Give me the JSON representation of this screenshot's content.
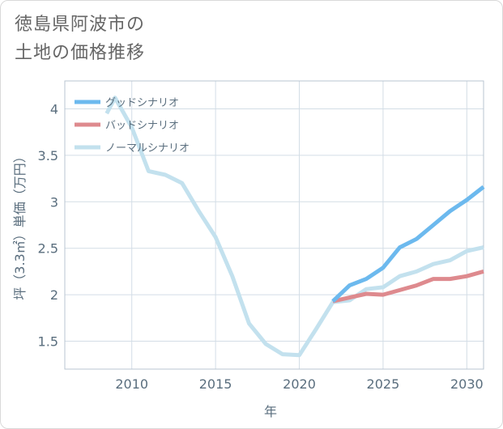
{
  "title_lines": [
    "徳島県阿波市の",
    "土地の価格推移"
  ],
  "chart_data": {
    "type": "line",
    "xlabel": "年",
    "ylabel": "坪（3.3㎡）単価（万円）",
    "xlim": [
      2006,
      2031
    ],
    "ylim": [
      1.2,
      4.3
    ],
    "xticks": [
      2010,
      2015,
      2020,
      2025,
      2030
    ],
    "yticks": [
      1.5,
      2,
      2.5,
      3,
      3.5,
      4
    ],
    "xtick_labels": [
      "2010",
      "2015",
      "2020",
      "2025",
      "2030"
    ],
    "ytick_labels": [
      "1.5",
      "2",
      "2.5",
      "3",
      "3.5",
      "4"
    ],
    "grid": true,
    "legend_position": "top-left",
    "series": [
      {
        "name": "グッドシナリオ",
        "color": "#6cb9ee",
        "x": [
          2022,
          2023,
          2024,
          2025,
          2026,
          2027,
          2028,
          2029,
          2030,
          2031
        ],
        "y": [
          1.93,
          2.1,
          2.17,
          2.29,
          2.51,
          2.6,
          2.75,
          2.9,
          3.02,
          3.16
        ]
      },
      {
        "name": "バッドシナリオ",
        "color": "#de8a8e",
        "x": [
          2022,
          2023,
          2024,
          2025,
          2026,
          2027,
          2028,
          2029,
          2030,
          2031
        ],
        "y": [
          1.93,
          1.97,
          2.01,
          2.0,
          2.05,
          2.1,
          2.17,
          2.17,
          2.2,
          2.25
        ]
      },
      {
        "name": "ノーマルシナリオ",
        "color": "#c3e1ee",
        "x": [
          2008.5,
          2009,
          2010,
          2011,
          2012,
          2013,
          2014,
          2015,
          2016,
          2017,
          2018,
          2019,
          2020,
          2021,
          2022,
          2023,
          2024,
          2025,
          2026,
          2027,
          2028,
          2029,
          2030,
          2031
        ],
        "y": [
          3.95,
          4.12,
          3.8,
          3.33,
          3.29,
          3.2,
          2.9,
          2.62,
          2.2,
          1.69,
          1.47,
          1.36,
          1.35,
          1.63,
          1.92,
          1.94,
          2.06,
          2.08,
          2.2,
          2.25,
          2.33,
          2.37,
          2.47,
          2.51
        ]
      }
    ]
  }
}
